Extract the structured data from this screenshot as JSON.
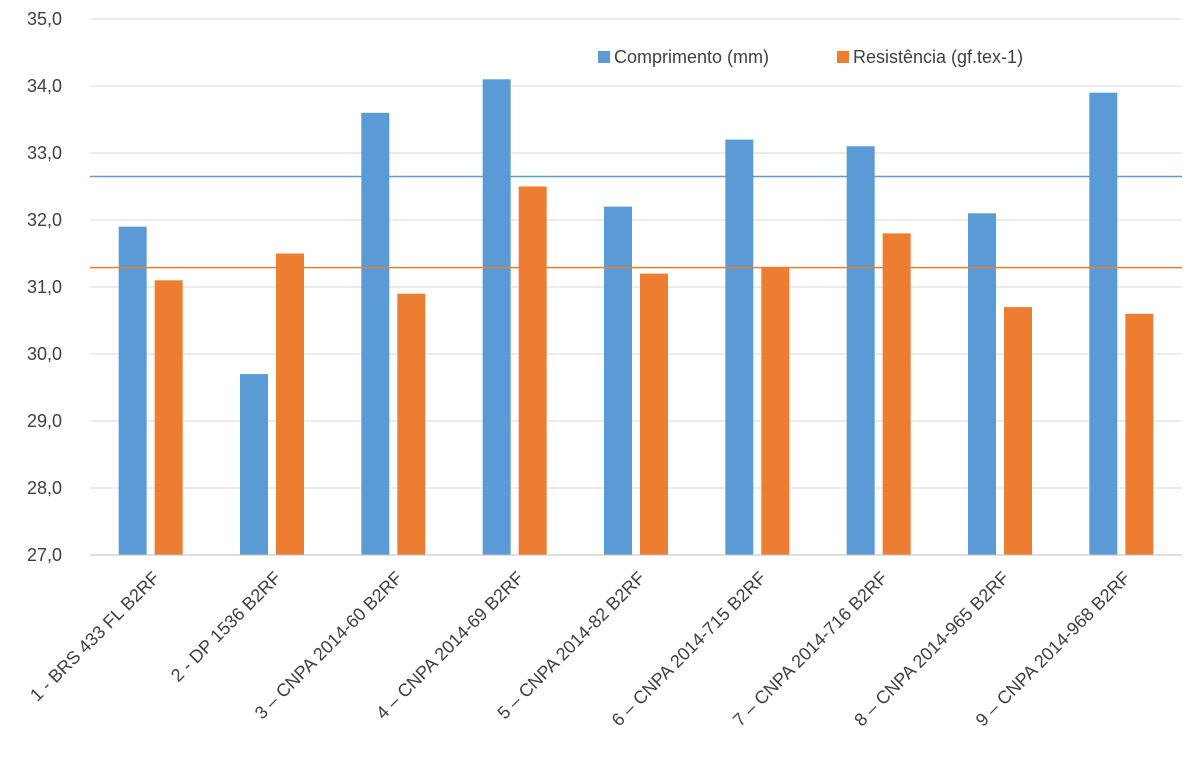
{
  "chart_data": {
    "type": "bar",
    "title": "",
    "xlabel": "",
    "ylabel": "",
    "ylim": [
      27.0,
      35.0
    ],
    "yticks": [
      "27,0",
      "28,0",
      "29,0",
      "30,0",
      "31,0",
      "32,0",
      "33,0",
      "34,0",
      "35,0"
    ],
    "ytick_values": [
      27,
      28,
      29,
      30,
      31,
      32,
      33,
      34,
      35
    ],
    "grid": true,
    "legend_position": "top-right",
    "categories": [
      "1 - BRS 433 FL B2RF",
      "2 - DP 1536 B2RF",
      "3 – CNPA 2014-60 B2RF",
      "4 – CNPA 2014-69 B2RF",
      "5 – CNPA 2014-82 B2RF",
      "6 – CNPA 2014-715 B2RF",
      "7 – CNPA 2014-716 B2RF",
      "8 – CNPA 2014-965 B2RF",
      "9 – CNPA 2014-968 B2RF"
    ],
    "series": [
      {
        "name": "Comprimento (mm)",
        "color": "#5b9bd5",
        "values": [
          31.9,
          29.7,
          33.6,
          34.1,
          32.2,
          33.2,
          33.1,
          32.1,
          33.9
        ],
        "mean_line": 32.65
      },
      {
        "name": "Resistência (gf.tex-1)",
        "color": "#ed7d31",
        "values": [
          31.1,
          31.5,
          30.9,
          32.5,
          31.2,
          31.3,
          31.8,
          30.7,
          30.6
        ],
        "mean_line": 31.29
      }
    ]
  }
}
